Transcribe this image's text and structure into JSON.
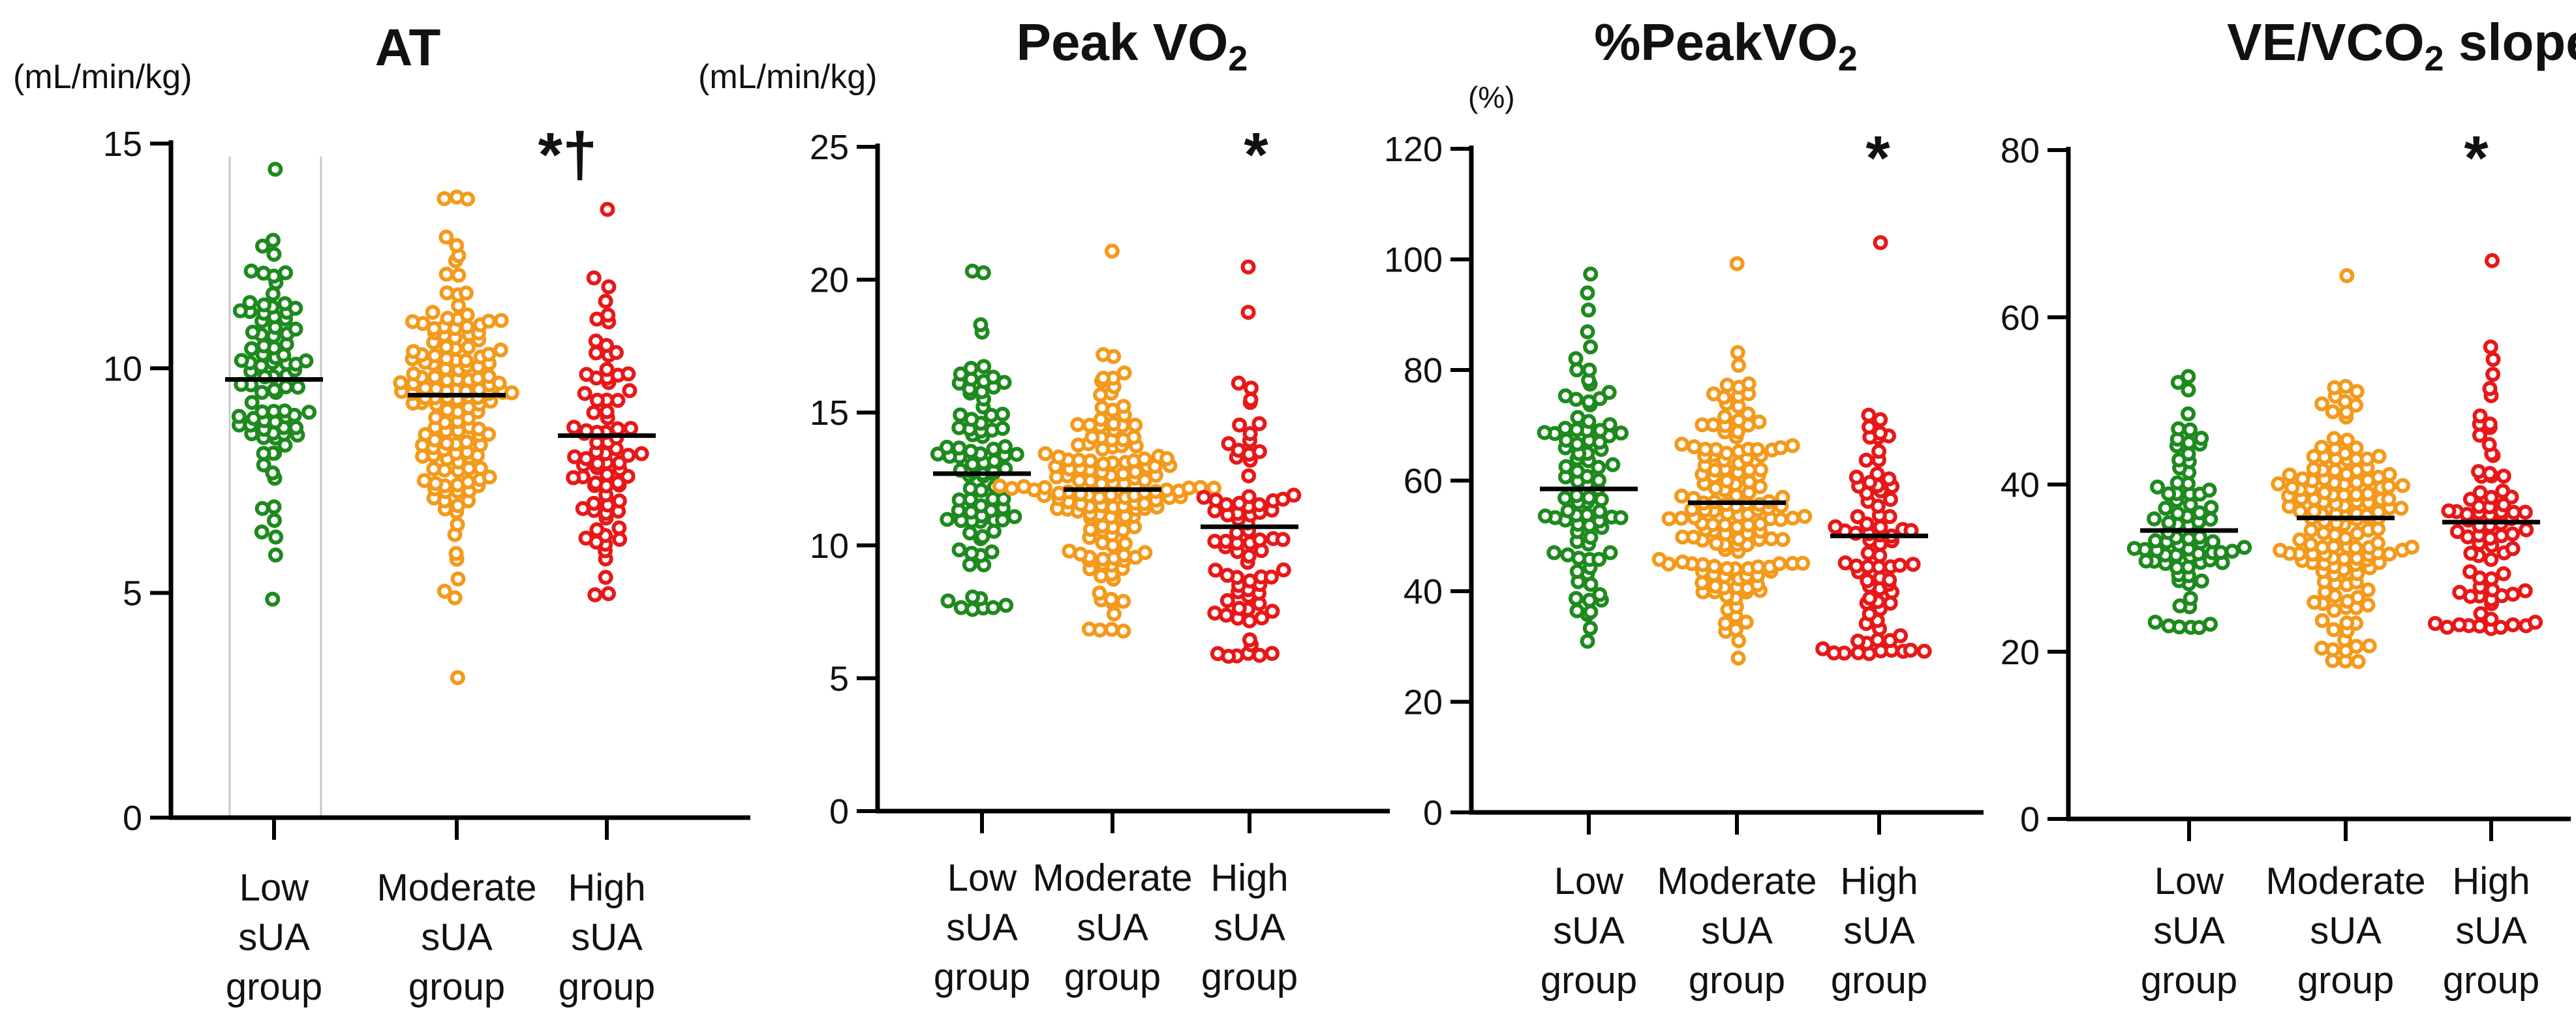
{
  "chart_data": [
    {
      "type": "scatter",
      "title": "AT",
      "ylabel": "(mL/min/kg)",
      "ylim": [
        0,
        15
      ],
      "yticks": [
        0,
        5,
        10,
        15
      ],
      "significance": "*†",
      "categories": [
        "Low sUA group",
        "Moderate sUA group",
        "High sUA group"
      ],
      "series": [
        {
          "name": "Low sUA group",
          "color": "#1e8a1e",
          "mean": 9.75,
          "min": 4.9,
          "max": 14.4,
          "n": 90,
          "spread": 1.6
        },
        {
          "name": "Moderate sUA group",
          "color": "#f39a1c",
          "mean": 9.4,
          "min": 3.1,
          "max": 13.8,
          "n": 150,
          "spread": 1.7
        },
        {
          "name": "High sUA group",
          "color": "#e81818",
          "mean": 8.5,
          "min": 5.0,
          "max": 13.5,
          "n": 80,
          "spread": 1.6
        }
      ]
    },
    {
      "type": "scatter",
      "title": "Peak VO",
      "title_sub": "2",
      "ylabel": "(mL/min/kg)",
      "ylim": [
        0,
        25
      ],
      "yticks": [
        0,
        5,
        10,
        15,
        20,
        25
      ],
      "significance": "*",
      "categories": [
        "Low sUA group",
        "Moderate sUA group",
        "High sUA group"
      ],
      "series": [
        {
          "name": "Low sUA group",
          "color": "#1e8a1e",
          "mean": 12.7,
          "min": 7.6,
          "max": 20.3,
          "n": 90,
          "spread": 3.0
        },
        {
          "name": "Moderate sUA group",
          "color": "#f39a1c",
          "mean": 12.1,
          "min": 6.8,
          "max": 21.0,
          "n": 150,
          "spread": 2.3
        },
        {
          "name": "High sUA group",
          "color": "#e81818",
          "mean": 10.7,
          "min": 5.9,
          "max": 20.5,
          "n": 80,
          "spread": 2.8
        }
      ]
    },
    {
      "type": "scatter",
      "title": "%PeakVO",
      "title_sub": "2",
      "ylabel": "(%)",
      "ylim": [
        0,
        120
      ],
      "yticks": [
        0,
        20,
        40,
        60,
        80,
        100,
        120
      ],
      "significance": "*",
      "categories": [
        "Low sUA group",
        "Moderate sUA group",
        "High sUA group"
      ],
      "series": [
        {
          "name": "Low sUA group",
          "color": "#1e8a1e",
          "mean": 58.5,
          "min": 31,
          "max": 97,
          "n": 90,
          "spread": 14
        },
        {
          "name": "Moderate sUA group",
          "color": "#f39a1c",
          "mean": 56,
          "min": 28,
          "max": 99,
          "n": 150,
          "spread": 12
        },
        {
          "name": "High sUA group",
          "color": "#e81818",
          "mean": 50,
          "min": 29,
          "max": 103,
          "n": 80,
          "spread": 14
        }
      ]
    },
    {
      "type": "scatter",
      "title": "VE/VCO",
      "title_sub": "2",
      "title_suffix": " slope",
      "ylabel": "",
      "ylim": [
        0,
        80
      ],
      "yticks": [
        0,
        20,
        40,
        60,
        80
      ],
      "significance": "*",
      "categories": [
        "Low sUA group",
        "Moderate sUA group",
        "High sUA group"
      ],
      "series": [
        {
          "name": "Low sUA group",
          "color": "#1e8a1e",
          "mean": 34.5,
          "min": 23,
          "max": 53,
          "n": 80,
          "spread": 6
        },
        {
          "name": "Moderate sUA group",
          "color": "#f39a1c",
          "mean": 36,
          "min": 19,
          "max": 65,
          "n": 150,
          "spread": 7
        },
        {
          "name": "High sUA group",
          "color": "#e81818",
          "mean": 35.5,
          "min": 23,
          "max": 67,
          "n": 80,
          "spread": 8
        }
      ]
    }
  ],
  "x_labels": [
    [
      "Low",
      "sUA",
      "group"
    ],
    [
      "Moderate",
      "sUA",
      "group"
    ],
    [
      "High",
      "sUA",
      "group"
    ]
  ]
}
